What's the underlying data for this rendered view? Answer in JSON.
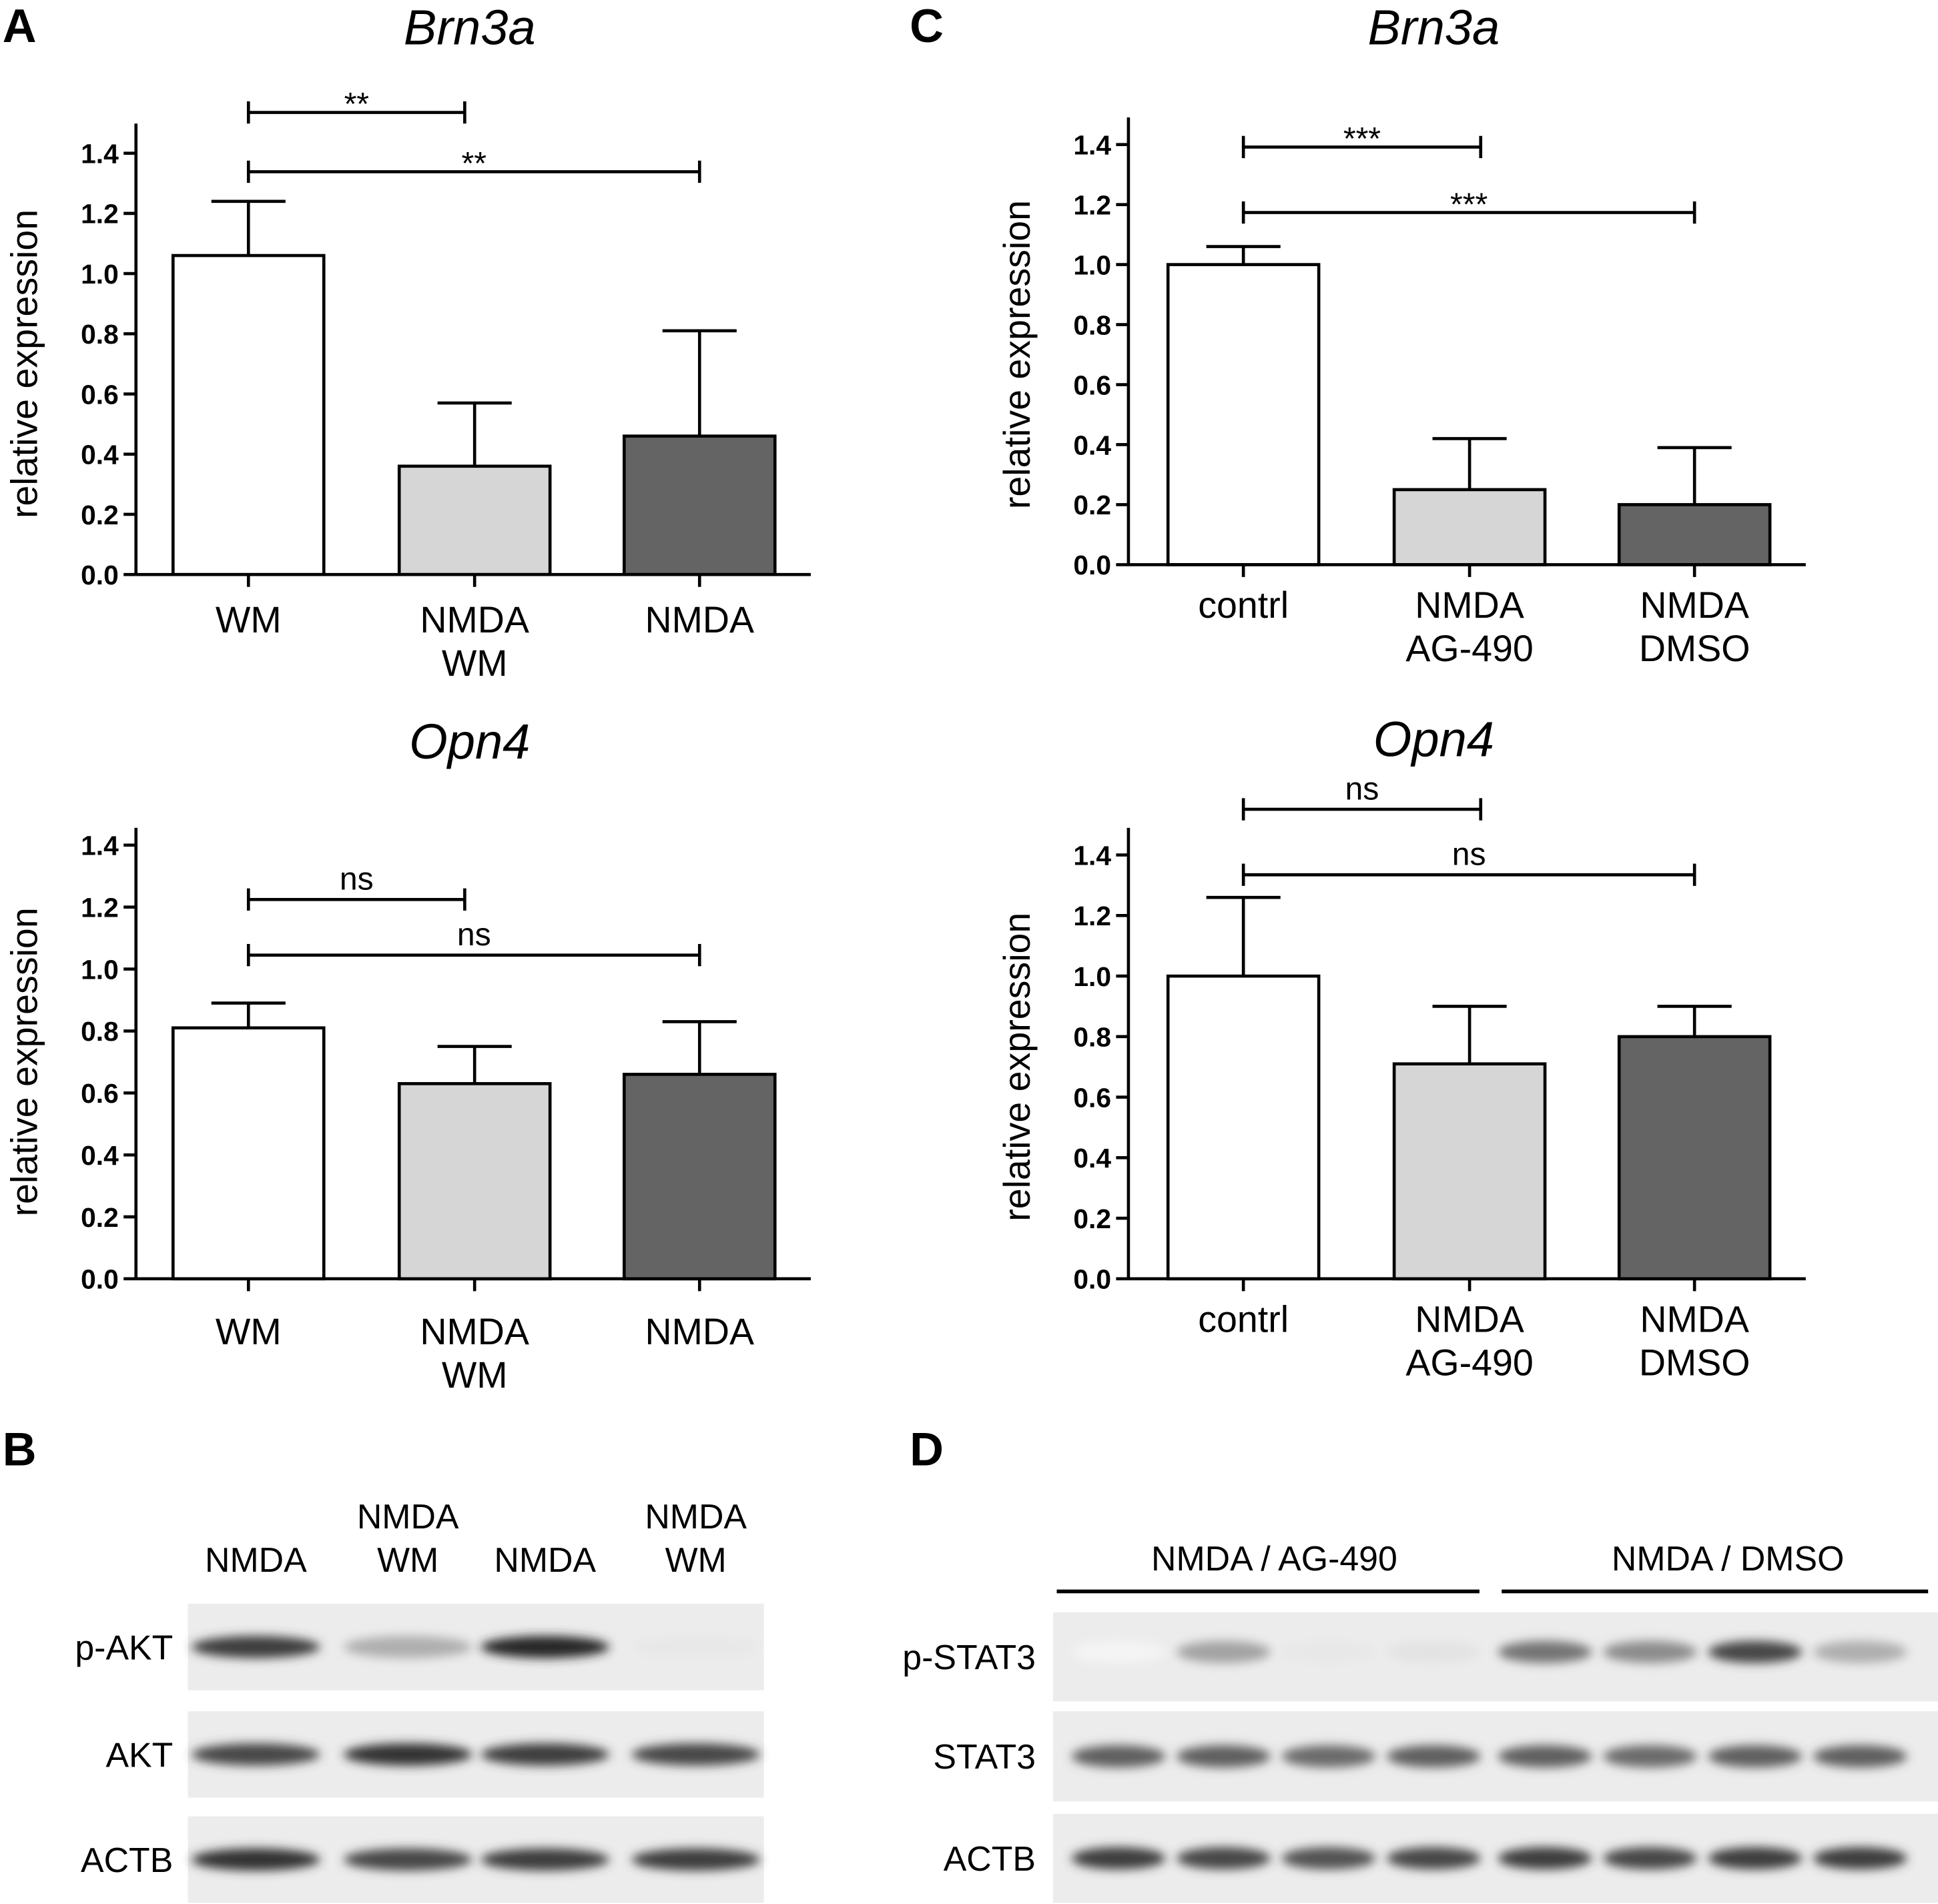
{
  "panel_letters": {
    "A": "A",
    "B": "B",
    "C": "C",
    "D": "D"
  },
  "colors": {
    "white_bar": "#ffffff",
    "light_bar": "#d6d6d6",
    "dark_bar": "#646464",
    "axis": "#000000"
  },
  "chart_data": [
    {
      "id": "A_top",
      "type": "bar",
      "title": "Brn3a",
      "ylabel": "relative expression",
      "ylim": [
        0,
        1.4
      ],
      "yticks": [
        "0.0",
        "0.2",
        "0.4",
        "0.6",
        "0.8",
        "1.0",
        "1.2",
        "1.4"
      ],
      "categories": [
        [
          "WM"
        ],
        [
          "NMDA",
          "WM"
        ],
        [
          "NMDA"
        ]
      ],
      "values": [
        1.06,
        0.36,
        0.46
      ],
      "errors": [
        0.18,
        0.21,
        0.35
      ],
      "significance": [
        {
          "from": 0,
          "to": 1,
          "label": "**"
        },
        {
          "from": 0,
          "to": 2,
          "label": "**"
        }
      ]
    },
    {
      "id": "A_bottom",
      "type": "bar",
      "title": "Opn4",
      "ylabel": "relative expression",
      "ylim": [
        0,
        1.4
      ],
      "yticks": [
        "0.0",
        "0.2",
        "0.4",
        "0.6",
        "0.8",
        "1.0",
        "1.2",
        "1.4"
      ],
      "categories": [
        [
          "WM"
        ],
        [
          "NMDA",
          "WM"
        ],
        [
          "NMDA"
        ]
      ],
      "values": [
        0.81,
        0.63,
        0.66
      ],
      "errors": [
        0.08,
        0.12,
        0.17
      ],
      "significance": [
        {
          "from": 0,
          "to": 1,
          "label": "ns"
        },
        {
          "from": 0,
          "to": 2,
          "label": "ns"
        }
      ]
    },
    {
      "id": "C_top",
      "type": "bar",
      "title": "Brn3a",
      "ylabel": "relative expression",
      "ylim": [
        0,
        1.4
      ],
      "yticks": [
        "0.0",
        "0.2",
        "0.4",
        "0.6",
        "0.8",
        "1.0",
        "1.2",
        "1.4"
      ],
      "categories": [
        [
          "contrl"
        ],
        [
          "NMDA",
          "AG-490"
        ],
        [
          "NMDA",
          "DMSO"
        ]
      ],
      "values": [
        1.0,
        0.25,
        0.2
      ],
      "errors": [
        0.06,
        0.17,
        0.19
      ],
      "significance": [
        {
          "from": 0,
          "to": 1,
          "label": "***"
        },
        {
          "from": 0,
          "to": 2,
          "label": "***"
        }
      ]
    },
    {
      "id": "C_bottom",
      "type": "bar",
      "title": "Opn4",
      "ylabel": "relative expression",
      "ylim": [
        0,
        1.4
      ],
      "yticks": [
        "0.0",
        "0.2",
        "0.4",
        "0.6",
        "0.8",
        "1.0",
        "1.2",
        "1.4"
      ],
      "categories": [
        [
          "contrl"
        ],
        [
          "NMDA",
          "AG-490"
        ],
        [
          "NMDA",
          "DMSO"
        ]
      ],
      "values": [
        1.0,
        0.71,
        0.8
      ],
      "errors": [
        0.26,
        0.19,
        0.1
      ],
      "significance": [
        {
          "from": 0,
          "to": 1,
          "label": "ns"
        },
        {
          "from": 0,
          "to": 2,
          "label": "ns"
        }
      ]
    }
  ],
  "blot_B": {
    "lanes": [
      [
        "NMDA"
      ],
      [
        "NMDA",
        "WM"
      ],
      [
        "NMDA"
      ],
      [
        "NMDA",
        "WM"
      ]
    ],
    "rows": [
      {
        "label": "p-AKT",
        "band_intensity": [
          0.85,
          0.35,
          0.95,
          0.1
        ]
      },
      {
        "label": "AKT",
        "band_intensity": [
          0.8,
          0.9,
          0.85,
          0.8
        ]
      },
      {
        "label": "ACTB",
        "band_intensity": [
          0.9,
          0.8,
          0.85,
          0.85
        ]
      }
    ]
  },
  "blot_D": {
    "groups": [
      "NMDA / AG-490",
      "NMDA / DMSO"
    ],
    "rows": [
      {
        "label": "p-STAT3",
        "band_intensity": [
          0.05,
          0.4,
          0.1,
          0.12,
          0.6,
          0.5,
          0.8,
          0.35
        ]
      },
      {
        "label": "STAT3",
        "band_intensity": [
          0.7,
          0.7,
          0.65,
          0.7,
          0.7,
          0.65,
          0.7,
          0.7
        ]
      },
      {
        "label": "ACTB",
        "band_intensity": [
          0.85,
          0.8,
          0.75,
          0.8,
          0.85,
          0.8,
          0.85,
          0.85
        ]
      }
    ]
  }
}
